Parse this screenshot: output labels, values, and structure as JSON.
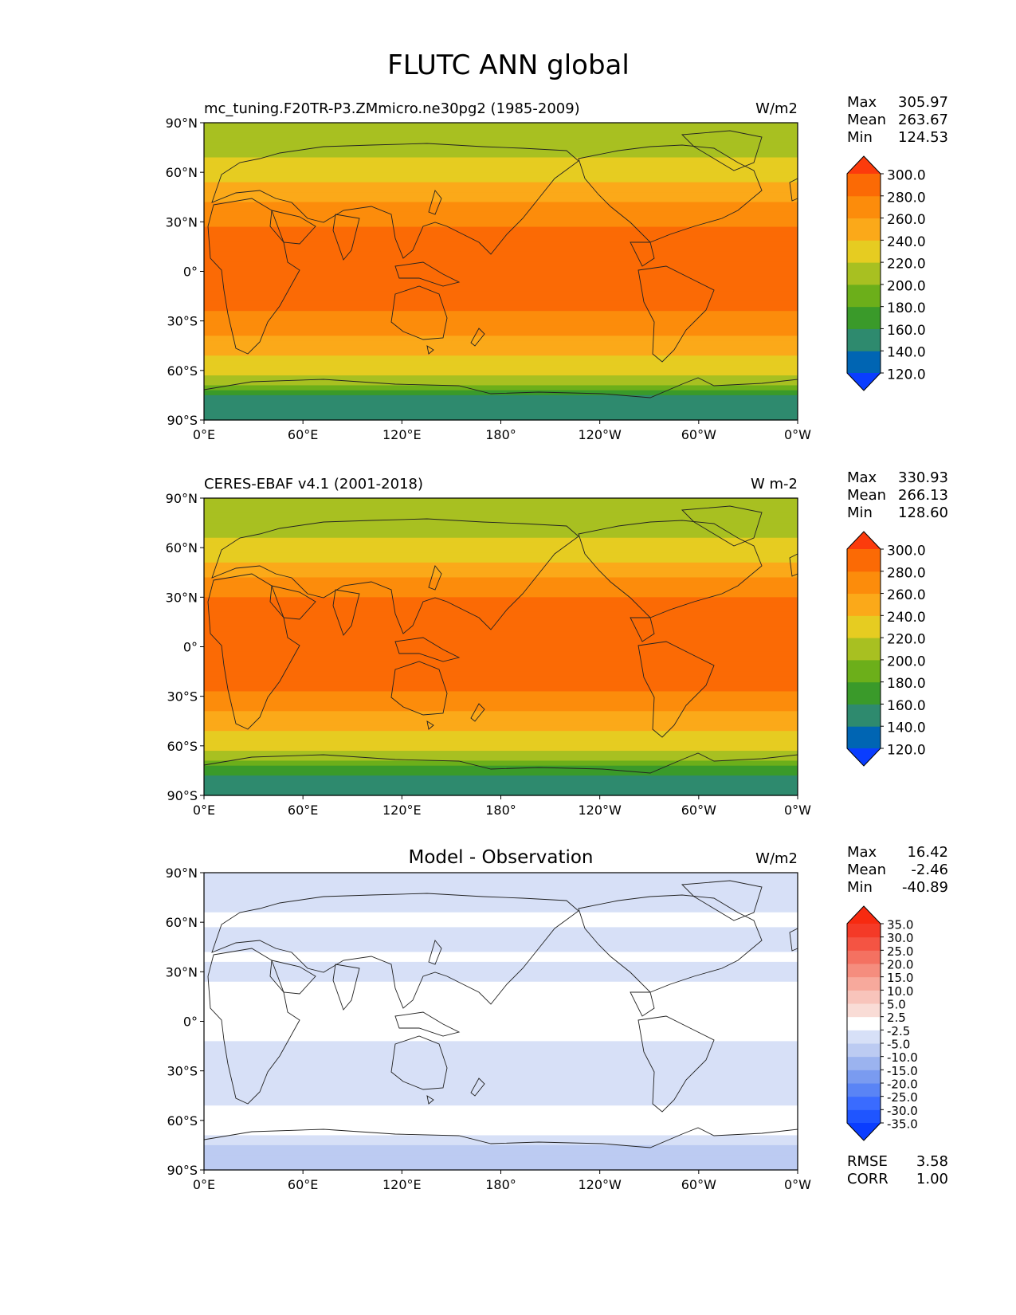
{
  "figure_title": "FLUTC ANN global",
  "lat_ticks": [
    "90°N",
    "60°N",
    "30°N",
    "0°",
    "30°S",
    "60°S",
    "90°S"
  ],
  "lon_ticks": [
    "0°E",
    "60°E",
    "120°E",
    "180°",
    "120°W",
    "60°W",
    "0°W"
  ],
  "panels": [
    {
      "id": "model",
      "title": "",
      "left_label": "mc_tuning.F20TR-P3.ZMmicro.ne30pg2 (1985-2009)",
      "units": "W/m2",
      "stats": [
        {
          "label": "Max",
          "value": "305.97"
        },
        {
          "label": "Mean",
          "value": "263.67"
        },
        {
          "label": "Min",
          "value": "124.53"
        }
      ],
      "colorbar": {
        "levels": [
          "120.0",
          "140.0",
          "160.0",
          "180.0",
          "200.0",
          "220.0",
          "240.0",
          "260.0",
          "280.0",
          "300.0"
        ],
        "colors": [
          "#0a3dff",
          "#0065b3",
          "#2e8a6e",
          "#3a9a2a",
          "#6caf1a",
          "#a8c021",
          "#e6cc21",
          "#fba919",
          "#fc8c0b",
          "#fb6a05",
          "#fc3b0c"
        ]
      }
    },
    {
      "id": "obs",
      "title": "",
      "left_label": "CERES-EBAF v4.1 (2001-2018)",
      "units": "W m-2",
      "stats": [
        {
          "label": "Max",
          "value": "330.93"
        },
        {
          "label": "Mean",
          "value": "266.13"
        },
        {
          "label": "Min",
          "value": "128.60"
        }
      ],
      "colorbar": {
        "levels": [
          "120.0",
          "140.0",
          "160.0",
          "180.0",
          "200.0",
          "220.0",
          "240.0",
          "260.0",
          "280.0",
          "300.0"
        ],
        "colors": [
          "#0a3dff",
          "#0065b3",
          "#2e8a6e",
          "#3a9a2a",
          "#6caf1a",
          "#a8c021",
          "#e6cc21",
          "#fba919",
          "#fc8c0b",
          "#fb6a05",
          "#fc3b0c"
        ]
      }
    },
    {
      "id": "diff",
      "title": "Model - Observation",
      "left_label": "",
      "units": "W/m2",
      "stats": [
        {
          "label": "Max",
          "value": "16.42"
        },
        {
          "label": "Mean",
          "value": "-2.46"
        },
        {
          "label": "Min",
          "value": "-40.89"
        }
      ],
      "extra_stats": [
        {
          "label": "RMSE",
          "value": "3.58"
        },
        {
          "label": "CORR",
          "value": "1.00"
        }
      ],
      "colorbar": {
        "levels": [
          "-35.0",
          "-30.0",
          "-25.0",
          "-20.0",
          "-15.0",
          "-10.0",
          "-5.0",
          "-2.5",
          "2.5",
          "5.0",
          "10.0",
          "15.0",
          "20.0",
          "25.0",
          "30.0",
          "35.0"
        ],
        "colors": [
          "#0a3dff",
          "#1f55ff",
          "#3a6bff",
          "#5a84f5",
          "#7a9bf0",
          "#9bb3ef",
          "#bccbf2",
          "#d7e0f7",
          "#ffffff",
          "#f9dcd6",
          "#f8c4bb",
          "#f7a99c",
          "#f58d7e",
          "#f47161",
          "#f45443",
          "#f43a27",
          "#f72a10"
        ]
      }
    }
  ],
  "chart_data": [
    {
      "type": "heatmap",
      "title": "mc_tuning.F20TR-P3.ZMmicro.ne30pg2 (1985-2009)",
      "units": "W/m2",
      "xlim": [
        0,
        360
      ],
      "ylim": [
        -90,
        90
      ],
      "zonal_profile": {
        "lat": [
          90,
          80,
          70,
          60,
          50,
          40,
          30,
          20,
          10,
          0,
          -10,
          -20,
          -30,
          -40,
          -50,
          -60,
          -65,
          -70,
          -75,
          -80,
          -90
        ],
        "value": [
          205,
          210,
          218,
          230,
          245,
          262,
          278,
          285,
          285,
          282,
          285,
          285,
          275,
          258,
          240,
          225,
          215,
          185,
          165,
          140,
          140
        ]
      },
      "stats": {
        "max": 305.97,
        "mean": 263.67,
        "min": 124.53
      },
      "colorbar_levels": [
        120,
        140,
        160,
        180,
        200,
        220,
        240,
        260,
        280,
        300
      ]
    },
    {
      "type": "heatmap",
      "title": "CERES-EBAF v4.1 (2001-2018)",
      "units": "W m-2",
      "xlim": [
        0,
        360
      ],
      "ylim": [
        -90,
        90
      ],
      "zonal_profile": {
        "lat": [
          90,
          80,
          70,
          60,
          50,
          40,
          30,
          20,
          10,
          0,
          -10,
          -20,
          -30,
          -40,
          -50,
          -60,
          -65,
          -70,
          -75,
          -80,
          -90
        ],
        "value": [
          200,
          208,
          215,
          228,
          243,
          262,
          280,
          288,
          288,
          285,
          288,
          288,
          278,
          260,
          242,
          228,
          217,
          190,
          165,
          150,
          150
        ]
      },
      "stats": {
        "max": 330.93,
        "mean": 266.13,
        "min": 128.6
      },
      "colorbar_levels": [
        120,
        140,
        160,
        180,
        200,
        220,
        240,
        260,
        280,
        300
      ]
    },
    {
      "type": "heatmap",
      "title": "Model - Observation",
      "units": "W/m2",
      "xlim": [
        0,
        360
      ],
      "ylim": [
        -90,
        90
      ],
      "zonal_profile": {
        "lat": [
          90,
          80,
          70,
          60,
          50,
          40,
          30,
          20,
          10,
          0,
          -10,
          -20,
          -30,
          -40,
          -50,
          -60,
          -65,
          -70,
          -75,
          -80,
          -90
        ],
        "value": [
          -3,
          -3,
          -3,
          -2,
          -4,
          -2,
          -4,
          -2,
          0,
          -1,
          -2,
          -4,
          -3,
          -3,
          -3,
          -1,
          0,
          -3,
          -5,
          -6,
          -6
        ]
      },
      "stats": {
        "max": 16.42,
        "mean": -2.46,
        "min": -40.89,
        "rmse": 3.58,
        "corr": 1.0
      },
      "colorbar_levels": [
        -35,
        -30,
        -25,
        -20,
        -15,
        -10,
        -5,
        -2.5,
        2.5,
        5,
        10,
        15,
        20,
        25,
        30,
        35
      ]
    }
  ]
}
